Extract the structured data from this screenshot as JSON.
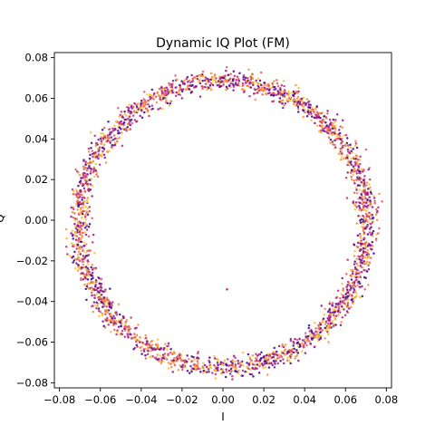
{
  "chart_data": {
    "type": "scatter",
    "title": "Dynamic IQ Plot (FM)",
    "xlabel": "I",
    "ylabel": "Q",
    "xlim": [
      -0.0825,
      0.0825
    ],
    "ylim": [
      -0.0825,
      0.0825
    ],
    "xticks": [
      -0.08,
      -0.06,
      -0.04,
      -0.02,
      0.0,
      0.02,
      0.04,
      0.06,
      0.08
    ],
    "xtick_labels": [
      "−0.08",
      "−0.06",
      "−0.04",
      "−0.02",
      "0.00",
      "0.02",
      "0.04",
      "0.06",
      "0.08"
    ],
    "yticks": [
      0.08,
      0.06,
      0.04,
      0.02,
      0.0,
      -0.02,
      -0.04,
      -0.06,
      -0.08
    ],
    "ytick_labels": [
      "0.08",
      "0.06",
      "0.04",
      "0.02",
      "0.00",
      "−0.02",
      "−0.04",
      "−0.06",
      "−0.08"
    ],
    "grid": false,
    "series": [
      {
        "description": "ring of IQ samples",
        "ring_center": [
          0.0,
          -0.002
        ],
        "ring_radius": 0.0705,
        "ring_thickness": 0.006,
        "colormap": [
          "#4b0c8b",
          "#8e1b9a",
          "#c0327f",
          "#e35f5a",
          "#f7943a",
          "#fdc13a"
        ]
      }
    ],
    "outliers": [
      [
        0.002,
        -0.034
      ]
    ]
  }
}
